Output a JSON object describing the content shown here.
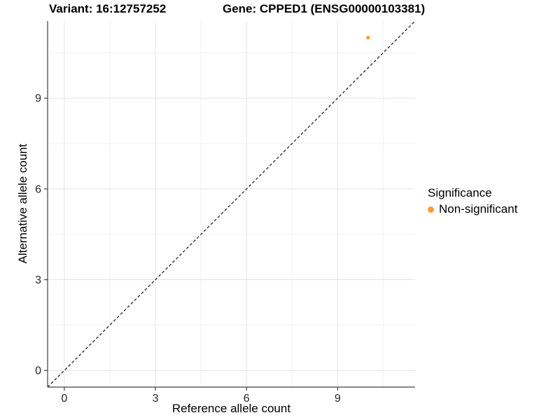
{
  "header": {
    "variant_title": "Variant: 16:12757252",
    "gene_title": "Gene: CPPED1 (ENSG00000103381)"
  },
  "chart_data": {
    "type": "scatter",
    "xlabel": "Reference allele count",
    "ylabel": "Alternative allele count",
    "xlim": [
      -0.55,
      11.55
    ],
    "ylim": [
      -0.55,
      11.55
    ],
    "xticks": [
      0,
      3,
      6,
      9
    ],
    "yticks": [
      0,
      3,
      6,
      9
    ],
    "xticks_minor": [
      1.5,
      4.5,
      7.5,
      10.5
    ],
    "yticks_minor": [
      1.5,
      4.5,
      7.5,
      10.5
    ],
    "grid": true,
    "identity_line": {
      "show": true,
      "style": "dashed",
      "color": "#111111"
    },
    "series": [
      {
        "name": "Non-significant",
        "color": "#F89F35",
        "points": [
          {
            "x": 10,
            "y": 11
          }
        ]
      }
    ],
    "legend": {
      "title": "Significance",
      "position": "right",
      "items": [
        {
          "label": "Non-significant",
          "color": "#F89F35"
        }
      ]
    }
  },
  "colors": {
    "background": "#FFFFFF",
    "grid_major": "#E4E4E4",
    "grid_minor": "#F1F1F1",
    "axis_line": "#404040",
    "tick_label": "#262626",
    "point": "#F89F35"
  }
}
